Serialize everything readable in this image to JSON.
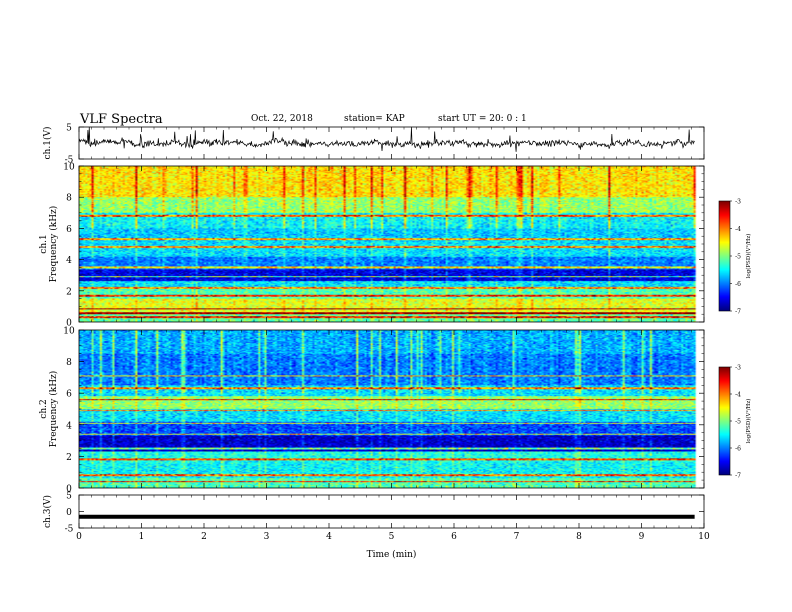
{
  "header": {
    "title": "VLF Spectra",
    "date": "Oct. 22, 2018",
    "station": "station= KAP",
    "start": "start  UT  =   20: 0  : 1"
  },
  "chart_data": [
    {
      "type": "line",
      "name": "ch1-waveform",
      "ylabel": "ch.1(V)",
      "ylim": [
        -5,
        5
      ],
      "yticks": [
        "5",
        "-5"
      ],
      "xlim": [
        0,
        10
      ],
      "data_end_min": 9.85,
      "baseline_v": 0.0,
      "amplitude_v": 2.6,
      "grid": false
    },
    {
      "type": "heatmap",
      "name": "ch1-spectrogram",
      "ylabel": "ch.1\nFrequency  (kHz)",
      "ylim": [
        0,
        10
      ],
      "yticks": [
        "0",
        "2",
        "4",
        "6",
        "8",
        "10"
      ],
      "xlim": [
        0,
        10
      ],
      "data_end_min": 9.85,
      "colorbar": {
        "label": "log(PSD)(V²/Hz)",
        "range": [
          -7,
          -3
        ],
        "ticks": [
          "-3",
          "-4",
          "-5",
          "-6",
          "-7"
        ]
      },
      "bands": [
        {
          "f": [
            0.0,
            0.5
          ],
          "level": -5.1
        },
        {
          "f": [
            0.5,
            1.5
          ],
          "level": -4.6
        },
        {
          "f": [
            1.5,
            2.1
          ],
          "level": -5.2
        },
        {
          "f": [
            2.1,
            2.6
          ],
          "level": -5.6
        },
        {
          "f": [
            2.6,
            3.4
          ],
          "level": -6.6
        },
        {
          "f": [
            3.4,
            4.2
          ],
          "level": -6.0
        },
        {
          "f": [
            4.2,
            5.2
          ],
          "level": -5.6
        },
        {
          "f": [
            5.2,
            6.0
          ],
          "level": -5.7
        },
        {
          "f": [
            6.0,
            7.0
          ],
          "level": -5.5
        },
        {
          "f": [
            7.0,
            8.0
          ],
          "level": -4.9
        },
        {
          "f": [
            8.0,
            10.0
          ],
          "level": -4.4
        }
      ],
      "tone_lines_khz": [
        0.3,
        0.55,
        0.85,
        1.7,
        2.2,
        2.9,
        3.5,
        4.8,
        5.3,
        6.8
      ]
    },
    {
      "type": "heatmap",
      "name": "ch2-spectrogram",
      "ylabel": "ch.2\nFrequency  (kHz)",
      "ylim": [
        0,
        10
      ],
      "yticks": [
        "0",
        "2",
        "4",
        "6",
        "8",
        "10"
      ],
      "xlim": [
        0,
        10
      ],
      "data_end_min": 9.85,
      "colorbar": {
        "label": "log(PSD)(V²/Hz)",
        "range": [
          -7,
          -3
        ],
        "ticks": [
          "-3",
          "-4",
          "-5",
          "-6",
          "-7"
        ]
      },
      "bands": [
        {
          "f": [
            0.0,
            0.6
          ],
          "level": -5.2
        },
        {
          "f": [
            0.6,
            1.6
          ],
          "level": -5.5
        },
        {
          "f": [
            1.6,
            2.3
          ],
          "level": -5.4
        },
        {
          "f": [
            2.3,
            3.3
          ],
          "level": -6.7
        },
        {
          "f": [
            3.3,
            4.2
          ],
          "level": -6.2
        },
        {
          "f": [
            4.2,
            5.0
          ],
          "level": -5.6
        },
        {
          "f": [
            5.0,
            5.8
          ],
          "level": -4.9
        },
        {
          "f": [
            5.8,
            6.5
          ],
          "level": -5.6
        },
        {
          "f": [
            6.5,
            8.5
          ],
          "level": -6.0
        },
        {
          "f": [
            8.5,
            10.0
          ],
          "level": -5.8
        }
      ],
      "tone_lines_khz": [
        0.4,
        0.8,
        1.8,
        2.5,
        3.4,
        4.1,
        4.9,
        5.6,
        6.3,
        7.1
      ]
    },
    {
      "type": "line",
      "name": "ch3-waveform",
      "ylabel": "ch.3(V)",
      "ylim": [
        -5,
        5
      ],
      "yticks": [
        "5",
        "0",
        "-5"
      ],
      "xlim": [
        0,
        10
      ],
      "data_end_min": 9.85,
      "baseline_v": -1.6,
      "amplitude_v": 0.05,
      "grid": false
    }
  ],
  "x_axis": {
    "label": "Time  (min)",
    "ticks": [
      "0",
      "1",
      "2",
      "3",
      "4",
      "5",
      "6",
      "7",
      "8",
      "9",
      "10"
    ]
  }
}
